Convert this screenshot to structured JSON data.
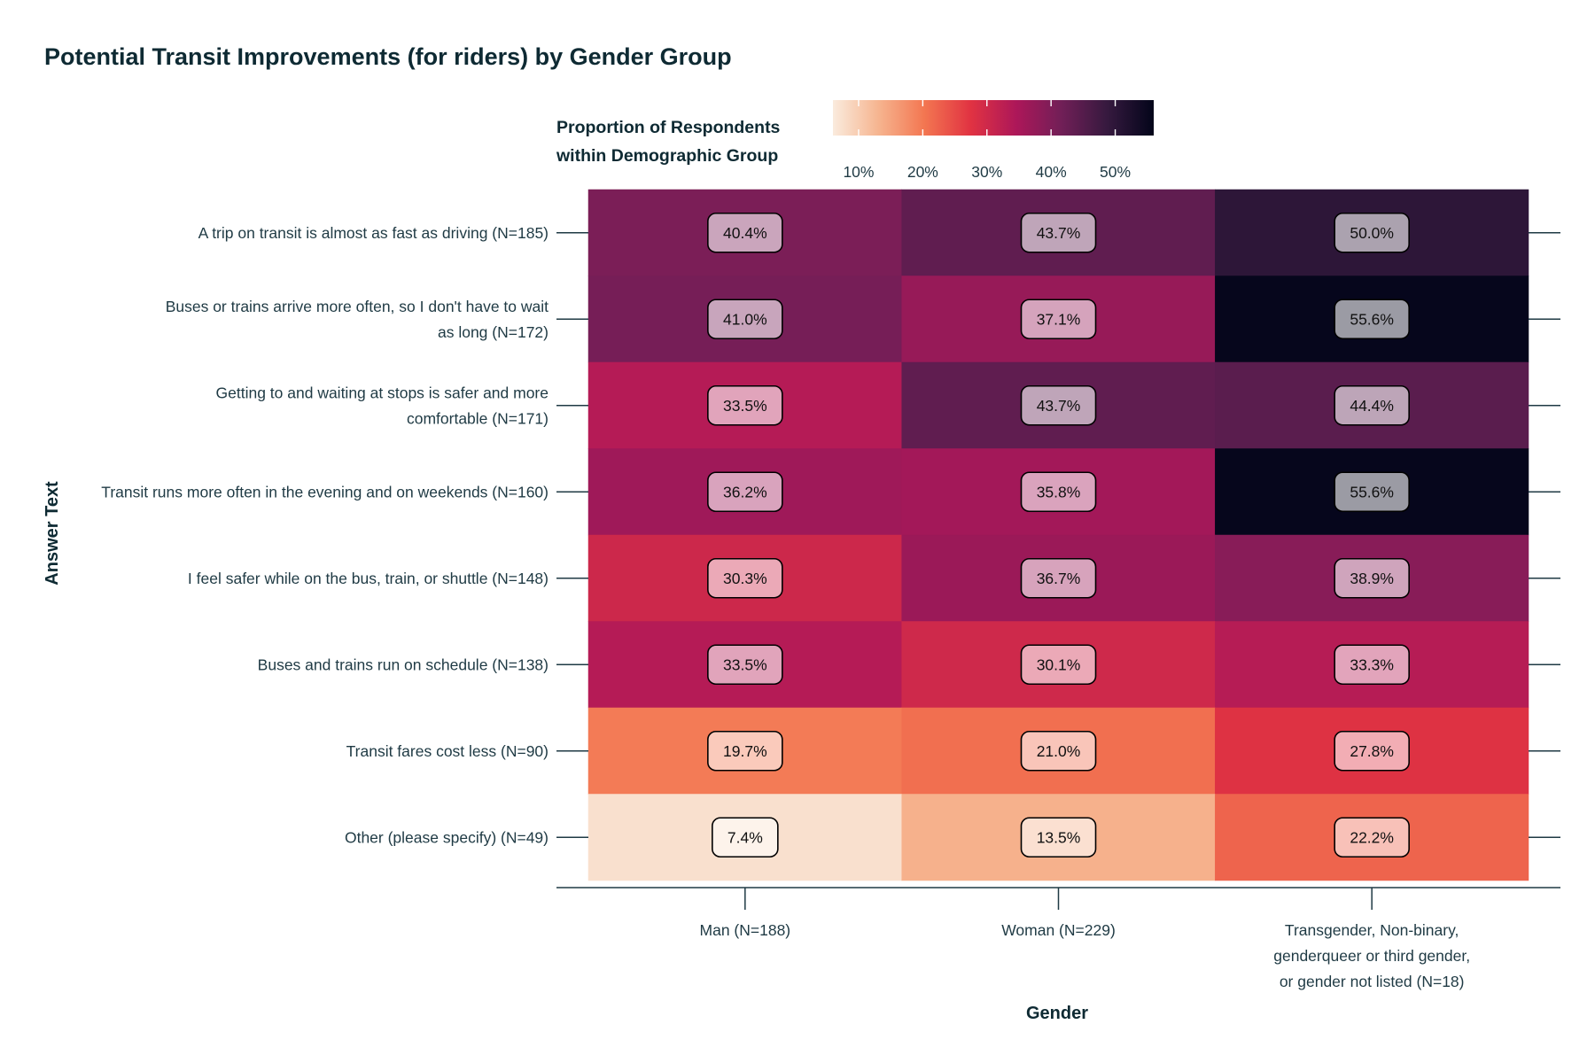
{
  "chart_data": {
    "type": "heatmap",
    "title": "Potential Transit Improvements (for riders) by Gender Group",
    "xlabel": "Gender",
    "ylabel": "Answer Text",
    "legend": {
      "title_lines": [
        "Proportion of Respondents",
        "within Demographic Group"
      ],
      "ticks": [
        {
          "value": 10,
          "label": "10%"
        },
        {
          "value": 20,
          "label": "20%"
        },
        {
          "value": 30,
          "label": "30%"
        },
        {
          "value": 40,
          "label": "40%"
        },
        {
          "value": 50,
          "label": "50%"
        }
      ],
      "range": [
        6,
        56
      ],
      "placement": "top"
    },
    "columns": [
      {
        "lines": [
          "Man (N=188)"
        ]
      },
      {
        "lines": [
          "Woman (N=229)"
        ]
      },
      {
        "lines": [
          "Transgender, Non-binary,",
          "genderqueer or third gender,",
          "or gender not listed (N=18)"
        ]
      }
    ],
    "rows": [
      {
        "lines": [
          "A trip on transit is almost as fast as driving (N=185)"
        ],
        "values": [
          40.4,
          43.7,
          50.0
        ]
      },
      {
        "lines": [
          "Buses or trains arrive more often, so I don't have to wait",
          "as long (N=172)"
        ],
        "values": [
          41.0,
          37.1,
          55.6
        ]
      },
      {
        "lines": [
          "Getting to and waiting at stops is safer and more",
          "comfortable (N=171)"
        ],
        "values": [
          33.5,
          43.7,
          44.4
        ]
      },
      {
        "lines": [
          "Transit runs more often in the evening and on weekends (N=160)"
        ],
        "values": [
          36.2,
          35.8,
          55.6
        ]
      },
      {
        "lines": [
          "I feel safer while on the bus, train, or shuttle (N=148)"
        ],
        "values": [
          30.3,
          36.7,
          38.9
        ]
      },
      {
        "lines": [
          "Buses and trains run on schedule (N=138)"
        ],
        "values": [
          33.5,
          30.1,
          33.3
        ]
      },
      {
        "lines": [
          "Transit fares cost less (N=90)"
        ],
        "values": [
          19.7,
          21.0,
          27.8
        ]
      },
      {
        "lines": [
          "Other (please specify) (N=49)"
        ],
        "values": [
          7.4,
          13.5,
          22.2
        ]
      }
    ],
    "cell_labels": [
      [
        "40.4%",
        "43.7%",
        "50.0%"
      ],
      [
        "41.0%",
        "37.1%",
        "55.6%"
      ],
      [
        "33.5%",
        "43.7%",
        "44.4%"
      ],
      [
        "36.2%",
        "35.8%",
        "55.6%"
      ],
      [
        "30.3%",
        "36.7%",
        "38.9%"
      ],
      [
        "33.5%",
        "30.1%",
        "33.3%"
      ],
      [
        "19.7%",
        "21.0%",
        "27.8%"
      ],
      [
        "7.4%",
        "13.5%",
        "22.2%"
      ]
    ],
    "colorscale": [
      "#faebdd",
      "#f6b48f",
      "#f37651",
      "#e13342",
      "#ad1759",
      "#701f57",
      "#35193e",
      "#03051a"
    ]
  }
}
